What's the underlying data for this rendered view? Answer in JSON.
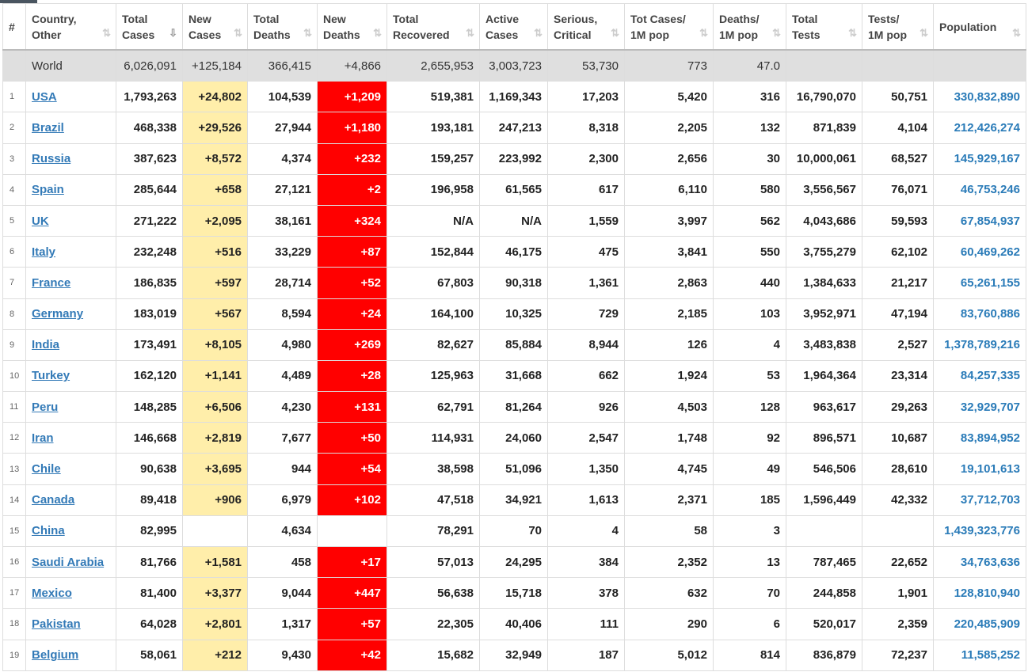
{
  "headers": [
    "#",
    "Country,\nOther",
    "Total\nCases",
    "New\nCases",
    "Total\nDeaths",
    "New\nDeaths",
    "Total\nRecovered",
    "Active\nCases",
    "Serious,\nCritical",
    "Tot Cases/\n1M pop",
    "Deaths/\n1M pop",
    "Total\nTests",
    "Tests/\n1M pop",
    "Population"
  ],
  "colors": {
    "new_cases_bg": "#ffeeaa",
    "new_deaths_bg": "#ff0000",
    "link": "#337ab7"
  },
  "world": [
    "",
    "World",
    "6,026,091",
    "+125,184",
    "366,415",
    "+4,866",
    "2,655,953",
    "3,003,723",
    "53,730",
    "773",
    "47.0",
    "",
    "",
    ""
  ],
  "rows": [
    [
      "1",
      "USA",
      "1,793,263",
      "+24,802",
      "104,539",
      "+1,209",
      "519,381",
      "1,169,343",
      "17,203",
      "5,420",
      "316",
      "16,790,070",
      "50,751",
      "330,832,890"
    ],
    [
      "2",
      "Brazil",
      "468,338",
      "+29,526",
      "27,944",
      "+1,180",
      "193,181",
      "247,213",
      "8,318",
      "2,205",
      "132",
      "871,839",
      "4,104",
      "212,426,274"
    ],
    [
      "3",
      "Russia",
      "387,623",
      "+8,572",
      "4,374",
      "+232",
      "159,257",
      "223,992",
      "2,300",
      "2,656",
      "30",
      "10,000,061",
      "68,527",
      "145,929,167"
    ],
    [
      "4",
      "Spain",
      "285,644",
      "+658",
      "27,121",
      "+2",
      "196,958",
      "61,565",
      "617",
      "6,110",
      "580",
      "3,556,567",
      "76,071",
      "46,753,246"
    ],
    [
      "5",
      "UK",
      "271,222",
      "+2,095",
      "38,161",
      "+324",
      "N/A",
      "N/A",
      "1,559",
      "3,997",
      "562",
      "4,043,686",
      "59,593",
      "67,854,937"
    ],
    [
      "6",
      "Italy",
      "232,248",
      "+516",
      "33,229",
      "+87",
      "152,844",
      "46,175",
      "475",
      "3,841",
      "550",
      "3,755,279",
      "62,102",
      "60,469,262"
    ],
    [
      "7",
      "France",
      "186,835",
      "+597",
      "28,714",
      "+52",
      "67,803",
      "90,318",
      "1,361",
      "2,863",
      "440",
      "1,384,633",
      "21,217",
      "65,261,155"
    ],
    [
      "8",
      "Germany",
      "183,019",
      "+567",
      "8,594",
      "+24",
      "164,100",
      "10,325",
      "729",
      "2,185",
      "103",
      "3,952,971",
      "47,194",
      "83,760,886"
    ],
    [
      "9",
      "India",
      "173,491",
      "+8,105",
      "4,980",
      "+269",
      "82,627",
      "85,884",
      "8,944",
      "126",
      "4",
      "3,483,838",
      "2,527",
      "1,378,789,216"
    ],
    [
      "10",
      "Turkey",
      "162,120",
      "+1,141",
      "4,489",
      "+28",
      "125,963",
      "31,668",
      "662",
      "1,924",
      "53",
      "1,964,364",
      "23,314",
      "84,257,335"
    ],
    [
      "11",
      "Peru",
      "148,285",
      "+6,506",
      "4,230",
      "+131",
      "62,791",
      "81,264",
      "926",
      "4,503",
      "128",
      "963,617",
      "29,263",
      "32,929,707"
    ],
    [
      "12",
      "Iran",
      "146,668",
      "+2,819",
      "7,677",
      "+50",
      "114,931",
      "24,060",
      "2,547",
      "1,748",
      "92",
      "896,571",
      "10,687",
      "83,894,952"
    ],
    [
      "13",
      "Chile",
      "90,638",
      "+3,695",
      "944",
      "+54",
      "38,598",
      "51,096",
      "1,350",
      "4,745",
      "49",
      "546,506",
      "28,610",
      "19,101,613"
    ],
    [
      "14",
      "Canada",
      "89,418",
      "+906",
      "6,979",
      "+102",
      "47,518",
      "34,921",
      "1,613",
      "2,371",
      "185",
      "1,596,449",
      "42,332",
      "37,712,703"
    ],
    [
      "15",
      "China",
      "82,995",
      "",
      "4,634",
      "",
      "78,291",
      "70",
      "4",
      "58",
      "3",
      "",
      "",
      "1,439,323,776"
    ],
    [
      "16",
      "Saudi Arabia",
      "81,766",
      "+1,581",
      "458",
      "+17",
      "57,013",
      "24,295",
      "384",
      "2,352",
      "13",
      "787,465",
      "22,652",
      "34,763,636"
    ],
    [
      "17",
      "Mexico",
      "81,400",
      "+3,377",
      "9,044",
      "+447",
      "56,638",
      "15,718",
      "378",
      "632",
      "70",
      "244,858",
      "1,901",
      "128,810,940"
    ],
    [
      "18",
      "Pakistan",
      "64,028",
      "+2,801",
      "1,317",
      "+57",
      "22,305",
      "40,406",
      "111",
      "290",
      "6",
      "520,017",
      "2,359",
      "220,485,909"
    ],
    [
      "19",
      "Belgium",
      "58,061",
      "+212",
      "9,430",
      "+42",
      "15,682",
      "32,949",
      "187",
      "5,012",
      "814",
      "836,879",
      "72,237",
      "11,585,252"
    ]
  ]
}
